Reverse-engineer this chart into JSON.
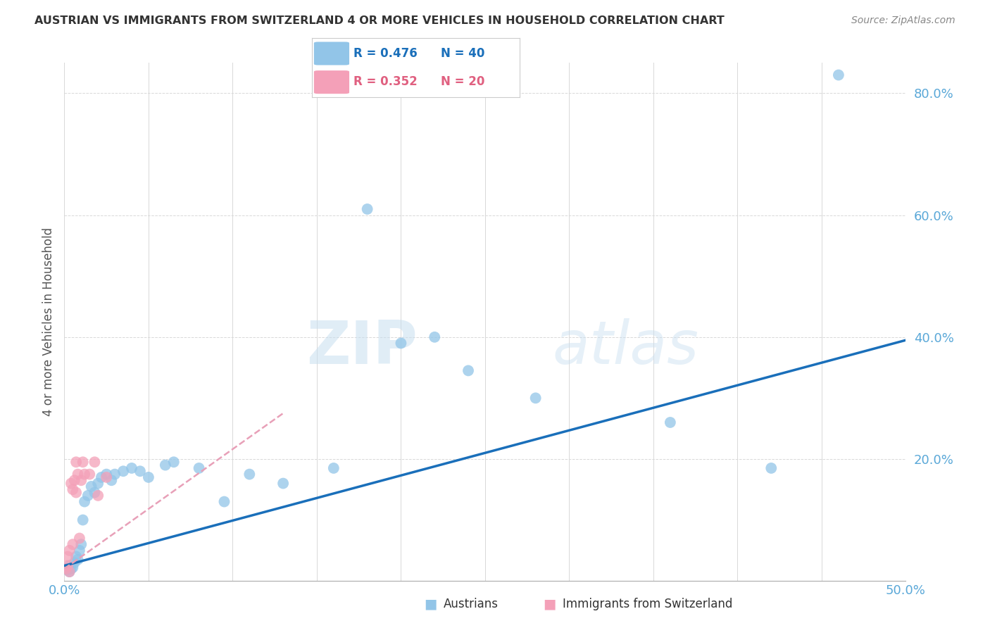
{
  "title": "AUSTRIAN VS IMMIGRANTS FROM SWITZERLAND 4 OR MORE VEHICLES IN HOUSEHOLD CORRELATION CHART",
  "source": "Source: ZipAtlas.com",
  "ylabel": "4 or more Vehicles in Household",
  "xlim": [
    0.0,
    0.5
  ],
  "ylim": [
    0.0,
    0.85
  ],
  "yticks": [
    0.0,
    0.2,
    0.4,
    0.6,
    0.8
  ],
  "ytick_labels": [
    "",
    "20.0%",
    "40.0%",
    "60.0%",
    "80.0%"
  ],
  "xtick_labels": [
    "0.0%",
    "50.0%"
  ],
  "legend_blue_r": "R = 0.476",
  "legend_blue_n": "N = 40",
  "legend_pink_r": "R = 0.352",
  "legend_pink_n": "N = 20",
  "color_blue": "#92c5e8",
  "color_pink": "#f4a0b8",
  "color_blue_line": "#1a6fba",
  "color_pink_line": "#e8a0b8",
  "watermark_zip": "ZIP",
  "watermark_atlas": "atlas",
  "blue_line_x": [
    0.0,
    0.5
  ],
  "blue_line_y": [
    0.025,
    0.395
  ],
  "pink_line_x": [
    0.0,
    0.13
  ],
  "pink_line_y": [
    0.02,
    0.275
  ],
  "austrians_x": [
    0.001,
    0.002,
    0.003,
    0.003,
    0.004,
    0.005,
    0.006,
    0.007,
    0.008,
    0.009,
    0.01,
    0.011,
    0.012,
    0.014,
    0.016,
    0.018,
    0.02,
    0.022,
    0.025,
    0.028,
    0.03,
    0.035,
    0.04,
    0.045,
    0.05,
    0.06,
    0.065,
    0.08,
    0.095,
    0.11,
    0.13,
    0.16,
    0.18,
    0.2,
    0.22,
    0.24,
    0.28,
    0.36,
    0.42,
    0.46
  ],
  "austrians_y": [
    0.02,
    0.018,
    0.015,
    0.025,
    0.02,
    0.022,
    0.03,
    0.04,
    0.035,
    0.05,
    0.06,
    0.1,
    0.13,
    0.14,
    0.155,
    0.145,
    0.16,
    0.17,
    0.175,
    0.165,
    0.175,
    0.18,
    0.185,
    0.18,
    0.17,
    0.19,
    0.195,
    0.185,
    0.13,
    0.175,
    0.16,
    0.185,
    0.61,
    0.39,
    0.4,
    0.345,
    0.3,
    0.26,
    0.185,
    0.83
  ],
  "swiss_x": [
    0.001,
    0.002,
    0.002,
    0.003,
    0.003,
    0.004,
    0.005,
    0.005,
    0.006,
    0.007,
    0.007,
    0.008,
    0.009,
    0.01,
    0.011,
    0.012,
    0.015,
    0.018,
    0.02,
    0.025
  ],
  "swiss_y": [
    0.02,
    0.025,
    0.04,
    0.015,
    0.05,
    0.16,
    0.15,
    0.06,
    0.165,
    0.145,
    0.195,
    0.175,
    0.07,
    0.165,
    0.195,
    0.175,
    0.175,
    0.195,
    0.14,
    0.17
  ]
}
